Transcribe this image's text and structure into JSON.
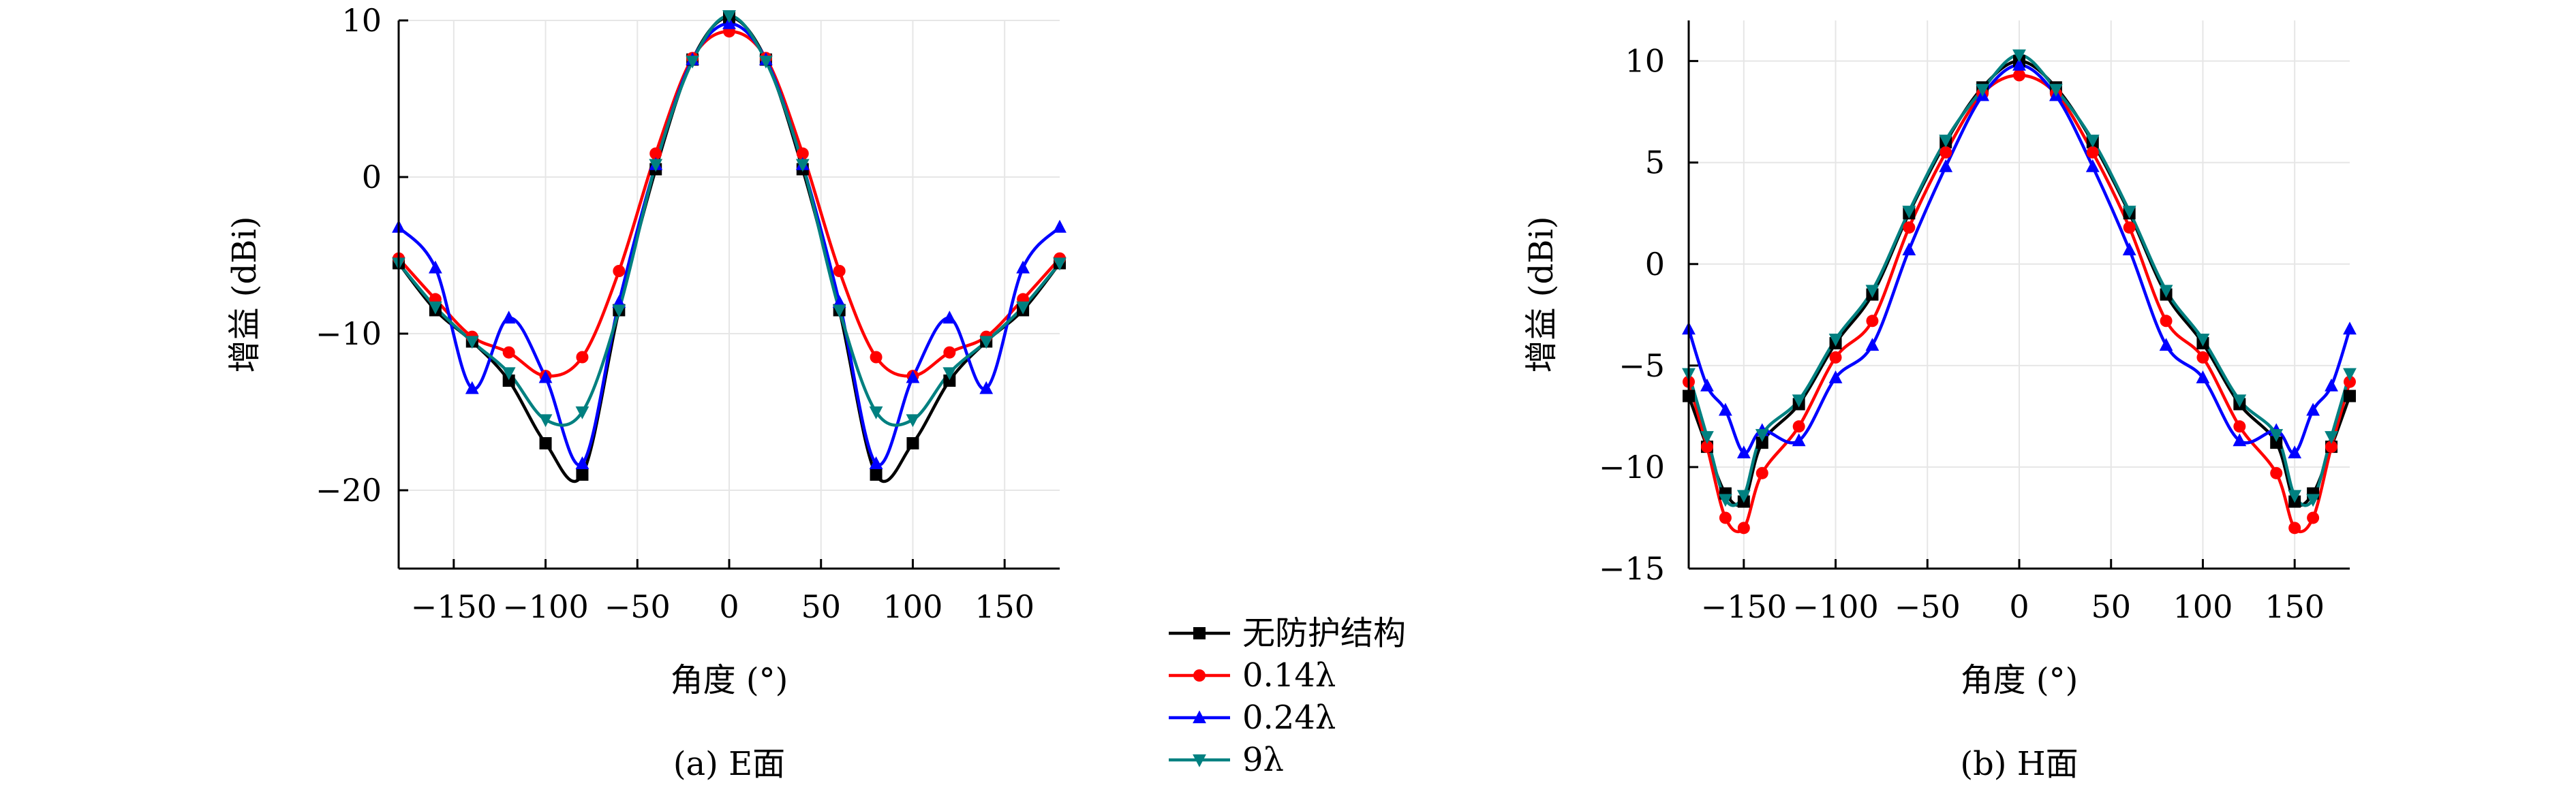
{
  "figure": {
    "legend_entries": [
      {
        "label": "无防护结构",
        "color": "#000000",
        "marker": "square"
      },
      {
        "label": "0.14λ",
        "color": "#ff0000",
        "marker": "circle"
      },
      {
        "label": "0.24λ",
        "color": "#0000ff",
        "marker": "triangle-up"
      },
      {
        "label": "9λ",
        "color": "#008080",
        "marker": "triangle-down"
      }
    ],
    "legend_placement": "between panels, bottom"
  },
  "chart_data": [
    {
      "type": "line",
      "title": "",
      "caption": "(a) E面",
      "xlabel": "角度 (°)",
      "ylabel": "增益 (dBi)",
      "xlim": [
        -180,
        180
      ],
      "ylim": [
        -25,
        10
      ],
      "xticks": [
        -150,
        -100,
        -50,
        0,
        50,
        100,
        150
      ],
      "xtick_labels": [
        "−150",
        "−100",
        "−50",
        "0",
        "50",
        "100",
        "150"
      ],
      "yticks": [
        -20,
        -10,
        0,
        10
      ],
      "ytick_labels": [
        "−20",
        "−10",
        "0",
        "10"
      ],
      "grid": true,
      "series": [
        {
          "name": "无防护结构",
          "color": "#000000",
          "marker": "square",
          "x": [
            -180,
            -160,
            -140,
            -120,
            -100,
            -80,
            -60,
            -40,
            -20,
            0,
            20,
            40,
            60,
            80,
            100,
            120,
            140,
            160,
            180
          ],
          "y": [
            -5.5,
            -8.5,
            -10.5,
            -13,
            -17,
            -19,
            -8.5,
            0.5,
            7.5,
            10.2,
            7.5,
            0.5,
            -8.5,
            -19,
            -17,
            -13,
            -10.5,
            -8.5,
            -5.5
          ]
        },
        {
          "name": "0.14λ",
          "color": "#ff0000",
          "marker": "circle",
          "x": [
            -180,
            -160,
            -140,
            -120,
            -100,
            -80,
            -60,
            -40,
            -20,
            0,
            20,
            40,
            60,
            80,
            100,
            120,
            140,
            160,
            180
          ],
          "y": [
            -5.2,
            -7.8,
            -10.2,
            -11.2,
            -12.7,
            -11.5,
            -6,
            1.5,
            7.6,
            9.3,
            7.6,
            1.5,
            -6,
            -11.5,
            -12.7,
            -11.2,
            -10.2,
            -7.8,
            -5.2
          ]
        },
        {
          "name": "0.24λ",
          "color": "#0000ff",
          "marker": "triangle-up",
          "x": [
            -180,
            -160,
            -140,
            -120,
            -100,
            -80,
            -60,
            -40,
            -20,
            0,
            20,
            40,
            60,
            80,
            100,
            120,
            140,
            160,
            180
          ],
          "y": [
            -3.2,
            -5.8,
            -13.5,
            -9,
            -12.8,
            -18.3,
            -8,
            0.8,
            7.5,
            9.8,
            7.5,
            0.8,
            -8,
            -18.3,
            -12.8,
            -9,
            -13.5,
            -5.8,
            -3.2
          ]
        },
        {
          "name": "9λ",
          "color": "#008080",
          "marker": "triangle-down",
          "x": [
            -180,
            -160,
            -140,
            -120,
            -100,
            -80,
            -60,
            -40,
            -20,
            0,
            20,
            40,
            60,
            80,
            100,
            120,
            140,
            160,
            180
          ],
          "y": [
            -5.5,
            -8.3,
            -10.5,
            -12.5,
            -15.5,
            -15,
            -8.5,
            0.8,
            7.4,
            10.3,
            7.4,
            0.8,
            -8.5,
            -15,
            -15.5,
            -12.5,
            -10.5,
            -8.3,
            -5.5
          ]
        }
      ]
    },
    {
      "type": "line",
      "title": "",
      "caption": "(b) H面",
      "xlabel": "角度 (°)",
      "ylabel": "增益 (dBi)",
      "xlim": [
        -180,
        180
      ],
      "ylim": [
        -15,
        12
      ],
      "xticks": [
        -150,
        -100,
        -50,
        0,
        50,
        100,
        150
      ],
      "xtick_labels": [
        "−150",
        "−100",
        "−50",
        "0",
        "50",
        "100",
        "150"
      ],
      "yticks": [
        -15,
        -10,
        -5,
        0,
        5,
        10
      ],
      "ytick_labels": [
        "−15",
        "−10",
        "−5",
        "0",
        "5",
        "10"
      ],
      "grid": true,
      "series": [
        {
          "name": "无防护结构",
          "color": "#000000",
          "marker": "square",
          "x": [
            -180,
            -170,
            -160,
            -150,
            -140,
            -120,
            -100,
            -80,
            -60,
            -40,
            -20,
            0,
            20,
            40,
            60,
            80,
            100,
            120,
            140,
            150,
            160,
            170,
            180
          ],
          "y": [
            -6.5,
            -9,
            -11.3,
            -11.7,
            -8.8,
            -6.9,
            -3.9,
            -1.5,
            2.5,
            6,
            8.7,
            10,
            8.7,
            6,
            2.5,
            -1.5,
            -3.9,
            -6.9,
            -8.8,
            -11.7,
            -11.3,
            -9,
            -6.5
          ]
        },
        {
          "name": "0.14λ",
          "color": "#ff0000",
          "marker": "circle",
          "x": [
            -180,
            -170,
            -160,
            -150,
            -140,
            -120,
            -100,
            -80,
            -60,
            -40,
            -20,
            0,
            20,
            40,
            60,
            80,
            100,
            120,
            140,
            150,
            160,
            170,
            180
          ],
          "y": [
            -5.8,
            -9,
            -12.5,
            -13,
            -10.3,
            -8,
            -4.6,
            -2.8,
            1.8,
            5.5,
            8.4,
            9.3,
            8.4,
            5.5,
            1.8,
            -2.8,
            -4.6,
            -8,
            -10.3,
            -13,
            -12.5,
            -9,
            -5.8
          ]
        },
        {
          "name": "0.24λ",
          "color": "#0000ff",
          "marker": "triangle-up",
          "x": [
            -180,
            -170,
            -160,
            -150,
            -140,
            -120,
            -100,
            -80,
            -60,
            -40,
            -20,
            0,
            20,
            40,
            60,
            80,
            100,
            120,
            140,
            150,
            160,
            170,
            180
          ],
          "y": [
            -3.2,
            -6,
            -7.2,
            -9.3,
            -8.2,
            -8.7,
            -5.6,
            -4,
            0.7,
            4.8,
            8.3,
            9.8,
            8.3,
            4.8,
            0.7,
            -4,
            -5.6,
            -8.7,
            -8.2,
            -9.3,
            -7.2,
            -6,
            -3.2
          ]
        },
        {
          "name": "9λ",
          "color": "#008080",
          "marker": "triangle-down",
          "x": [
            -180,
            -170,
            -160,
            -150,
            -140,
            -120,
            -100,
            -80,
            -60,
            -40,
            -20,
            0,
            20,
            40,
            60,
            80,
            100,
            120,
            140,
            150,
            160,
            170,
            180
          ],
          "y": [
            -5.4,
            -8.5,
            -11.6,
            -11.4,
            -8.4,
            -6.7,
            -3.7,
            -1.3,
            2.6,
            6.1,
            8.6,
            10.3,
            8.6,
            6.1,
            2.6,
            -1.3,
            -3.7,
            -6.7,
            -8.4,
            -11.4,
            -11.6,
            -8.5,
            -5.4
          ]
        }
      ]
    }
  ]
}
